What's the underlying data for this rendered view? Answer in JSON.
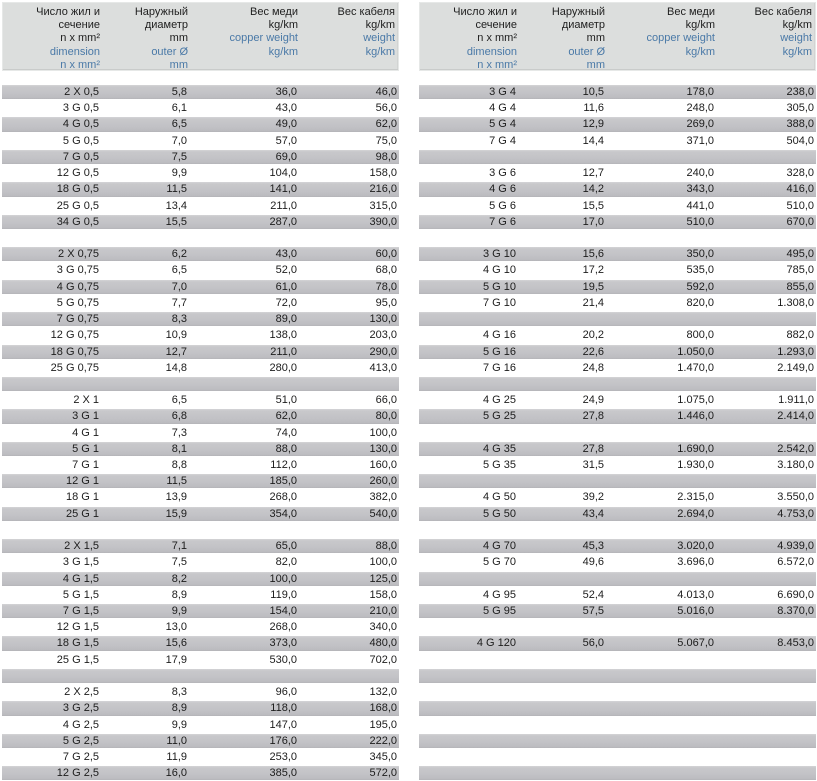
{
  "meta": {
    "description": "Cable specification tables (number of cores / outer diameter / copper weight / cable weight)",
    "accent_blue": "#4a79a7",
    "header_bg": "#dcdedd",
    "stripe_gray": "#c2c2c6"
  },
  "columns": [
    {
      "name": "dimension",
      "black": [
        "Число жил и",
        "сечение",
        "n x mm²"
      ],
      "blue": [
        "dimension",
        "n x mm²"
      ]
    },
    {
      "name": "outer-diameter",
      "black": [
        "Наружный",
        "диаметр",
        "mm"
      ],
      "blue": [
        "outer Ø",
        "mm"
      ]
    },
    {
      "name": "copper-weight",
      "black": [
        "Вес меди",
        "kg/km"
      ],
      "blue": [
        "copper weight",
        "kg/km"
      ]
    },
    {
      "name": "cable-weight",
      "black": [
        "Вес кабеля",
        "kg/km"
      ],
      "blue": [
        "weight",
        "kg/km"
      ]
    }
  ],
  "tables": [
    {
      "name": "left",
      "rows": [
        [
          "2 X 0,5",
          "5,8",
          "36,0",
          "46,0"
        ],
        [
          "3 G 0,5",
          "6,1",
          "43,0",
          "56,0"
        ],
        [
          "4 G 0,5",
          "6,5",
          "49,0",
          "62,0"
        ],
        [
          "5 G 0,5",
          "7,0",
          "57,0",
          "75,0"
        ],
        [
          "7 G 0,5",
          "7,5",
          "69,0",
          "98,0"
        ],
        [
          "12 G 0,5",
          "9,9",
          "104,0",
          "158,0"
        ],
        [
          "18 G 0,5",
          "11,5",
          "141,0",
          "216,0"
        ],
        [
          "25 G 0,5",
          "13,4",
          "211,0",
          "315,0"
        ],
        [
          "34 G 0,5",
          "15,5",
          "287,0",
          "390,0"
        ],
        [],
        [
          "2 X 0,75",
          "6,2",
          "43,0",
          "60,0"
        ],
        [
          "3 G 0,75",
          "6,5",
          "52,0",
          "68,0"
        ],
        [
          "4 G 0,75",
          "7,0",
          "61,0",
          "78,0"
        ],
        [
          "5 G 0,75",
          "7,7",
          "72,0",
          "95,0"
        ],
        [
          "7 G 0,75",
          "8,3",
          "89,0",
          "130,0"
        ],
        [
          "12 G 0,75",
          "10,9",
          "138,0",
          "203,0"
        ],
        [
          "18 G 0,75",
          "12,7",
          "211,0",
          "290,0"
        ],
        [
          "25 G 0,75",
          "14,8",
          "280,0",
          "413,0"
        ],
        [],
        [
          "2 X 1",
          "6,5",
          "51,0",
          "66,0"
        ],
        [
          "3 G 1",
          "6,8",
          "62,0",
          "80,0"
        ],
        [
          "4 G 1",
          "7,3",
          "74,0",
          "100,0"
        ],
        [
          "5 G 1",
          "8,1",
          "88,0",
          "130,0"
        ],
        [
          "7 G 1",
          "8,8",
          "112,0",
          "160,0"
        ],
        [
          "12 G 1",
          "11,5",
          "185,0",
          "260,0"
        ],
        [
          "18 G 1",
          "13,9",
          "268,0",
          "382,0"
        ],
        [
          "25 G 1",
          "15,9",
          "354,0",
          "540,0"
        ],
        [],
        [
          "2 X 1,5",
          "7,1",
          "65,0",
          "88,0"
        ],
        [
          "3 G 1,5",
          "7,5",
          "82,0",
          "100,0"
        ],
        [
          "4 G 1,5",
          "8,2",
          "100,0",
          "125,0"
        ],
        [
          "5 G 1,5",
          "8,9",
          "119,0",
          "158,0"
        ],
        [
          "7 G 1,5",
          "9,9",
          "154,0",
          "210,0"
        ],
        [
          "12 G 1,5",
          "13,0",
          "268,0",
          "340,0"
        ],
        [
          "18 G 1,5",
          "15,6",
          "373,0",
          "480,0"
        ],
        [
          "25 G 1,5",
          "17,9",
          "530,0",
          "702,0"
        ],
        [],
        [
          "2 X 2,5",
          "8,3",
          "96,0",
          "132,0"
        ],
        [
          "3 G 2,5",
          "8,9",
          "118,0",
          "168,0"
        ],
        [
          "4 G 2,5",
          "9,9",
          "147,0",
          "195,0"
        ],
        [
          "5 G 2,5",
          "11,0",
          "176,0",
          "222,0"
        ],
        [
          "7 G 2,5",
          "11,9",
          "253,0",
          "345,0"
        ],
        [
          "12 G 2,5",
          "16,0",
          "385,0",
          "572,0"
        ]
      ]
    },
    {
      "name": "right",
      "rows": [
        [
          "3 G 4",
          "10,5",
          "178,0",
          "238,0"
        ],
        [
          "4 G 4",
          "11,6",
          "248,0",
          "305,0"
        ],
        [
          "5 G 4",
          "12,9",
          "269,0",
          "388,0"
        ],
        [
          "7 G 4",
          "14,4",
          "371,0",
          "504,0"
        ],
        [],
        [
          "3 G 6",
          "12,7",
          "240,0",
          "328,0"
        ],
        [
          "4 G 6",
          "14,2",
          "343,0",
          "416,0"
        ],
        [
          "5 G 6",
          "15,5",
          "441,0",
          "510,0"
        ],
        [
          "7 G 6",
          "17,0",
          "510,0",
          "670,0"
        ],
        [],
        [
          "3 G 10",
          "15,6",
          "350,0",
          "495,0"
        ],
        [
          "4 G 10",
          "17,2",
          "535,0",
          "785,0"
        ],
        [
          "5 G 10",
          "19,5",
          "592,0",
          "855,0"
        ],
        [
          "7 G 10",
          "21,4",
          "820,0",
          "1.308,0"
        ],
        [],
        [
          "4 G 16",
          "20,2",
          "800,0",
          "882,0"
        ],
        [
          "5 G 16",
          "22,6",
          "1.050,0",
          "1.293,0"
        ],
        [
          "7 G 16",
          "24,8",
          "1.470,0",
          "2.149,0"
        ],
        [],
        [
          "4 G 25",
          "24,9",
          "1.075,0",
          "1.911,0"
        ],
        [
          "5 G 25",
          "27,8",
          "1.446,0",
          "2.414,0"
        ],
        [],
        [
          "4 G 35",
          "27,8",
          "1.690,0",
          "2.542,0"
        ],
        [
          "5 G 35",
          "31,5",
          "1.930,0",
          "3.180,0"
        ],
        [],
        [
          "4 G 50",
          "39,2",
          "2.315,0",
          "3.550,0"
        ],
        [
          "5 G 50",
          "43,4",
          "2.694,0",
          "4.753,0"
        ],
        [],
        [
          "4 G 70",
          "45,3",
          "3.020,0",
          "4.939,0"
        ],
        [
          "5 G 70",
          "49,6",
          "3.696,0",
          "6.572,0"
        ],
        [],
        [
          "4 G 95",
          "52,4",
          "4.013,0",
          "6.690,0"
        ],
        [
          "5 G 95",
          "57,5",
          "5.016,0",
          "8.370,0"
        ],
        [],
        [
          "4 G 120",
          "56,0",
          "5.067,0",
          "8.453,0"
        ],
        [],
        [],
        [],
        [],
        [],
        [],
        [],
        []
      ]
    }
  ]
}
